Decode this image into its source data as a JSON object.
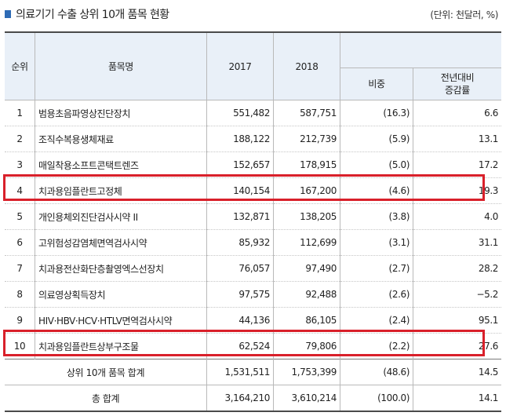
{
  "header": {
    "title": "의료기기 수출 상위 10개 품목 현황",
    "unit": "(단위: 천달러, %)"
  },
  "table": {
    "columns": {
      "rank": "순위",
      "item": "품목명",
      "y2017": "2017",
      "y2018": "2018",
      "share": "비중",
      "growth_line1": "전년대비",
      "growth_line2": "증감률"
    },
    "rows": [
      {
        "rank": "1",
        "item": "범용초음파영상진단장치",
        "y2017": "551,482",
        "y2018": "587,751",
        "share": "(16.3)",
        "growth": "6.6"
      },
      {
        "rank": "2",
        "item": "조직수복용생체재료",
        "y2017": "188,122",
        "y2018": "212,739",
        "share": "(5.9)",
        "growth": "13.1"
      },
      {
        "rank": "3",
        "item": "매일착용소프트콘택트렌즈",
        "y2017": "152,657",
        "y2018": "178,915",
        "share": "(5.0)",
        "growth": "17.2"
      },
      {
        "rank": "4",
        "item": "치과용임플란트고정체",
        "y2017": "140,154",
        "y2018": "167,200",
        "share": "(4.6)",
        "growth": "19.3"
      },
      {
        "rank": "5",
        "item": "개인용체외진단검사시약 II",
        "y2017": "132,871",
        "y2018": "138,205",
        "share": "(3.8)",
        "growth": "4.0"
      },
      {
        "rank": "6",
        "item": "고위험성감염체면역검사시약",
        "y2017": "85,932",
        "y2018": "112,699",
        "share": "(3.1)",
        "growth": "31.1"
      },
      {
        "rank": "7",
        "item": "치과용전산화단층촬영엑스선장치",
        "y2017": "76,057",
        "y2018": "97,490",
        "share": "(2.7)",
        "growth": "28.2"
      },
      {
        "rank": "8",
        "item": "의료영상획득장치",
        "y2017": "97,575",
        "y2018": "92,488",
        "share": "(2.6)",
        "growth": "−5.2"
      },
      {
        "rank": "9",
        "item": "HIV·HBV·HCV·HTLV면역검사시약",
        "y2017": "44,136",
        "y2018": "86,105",
        "share": "(2.4)",
        "growth": "95.1"
      },
      {
        "rank": "10",
        "item": "치과용임플란트상부구조물",
        "y2017": "62,524",
        "y2018": "79,806",
        "share": "(2.2)",
        "growth": "27.6"
      }
    ],
    "subtotal": {
      "label": "상위 10개 품목 합계",
      "y2017": "1,531,511",
      "y2018": "1,753,399",
      "share": "(48.6)",
      "growth": "14.5"
    },
    "total": {
      "label": "총 합계",
      "y2017": "3,164,210",
      "y2018": "3,610,214",
      "share": "(100.0)",
      "growth": "14.1"
    }
  },
  "highlight_color": "#d9202a",
  "header_fill": "#e9f0f8",
  "marker_color": "#2e6bb5"
}
